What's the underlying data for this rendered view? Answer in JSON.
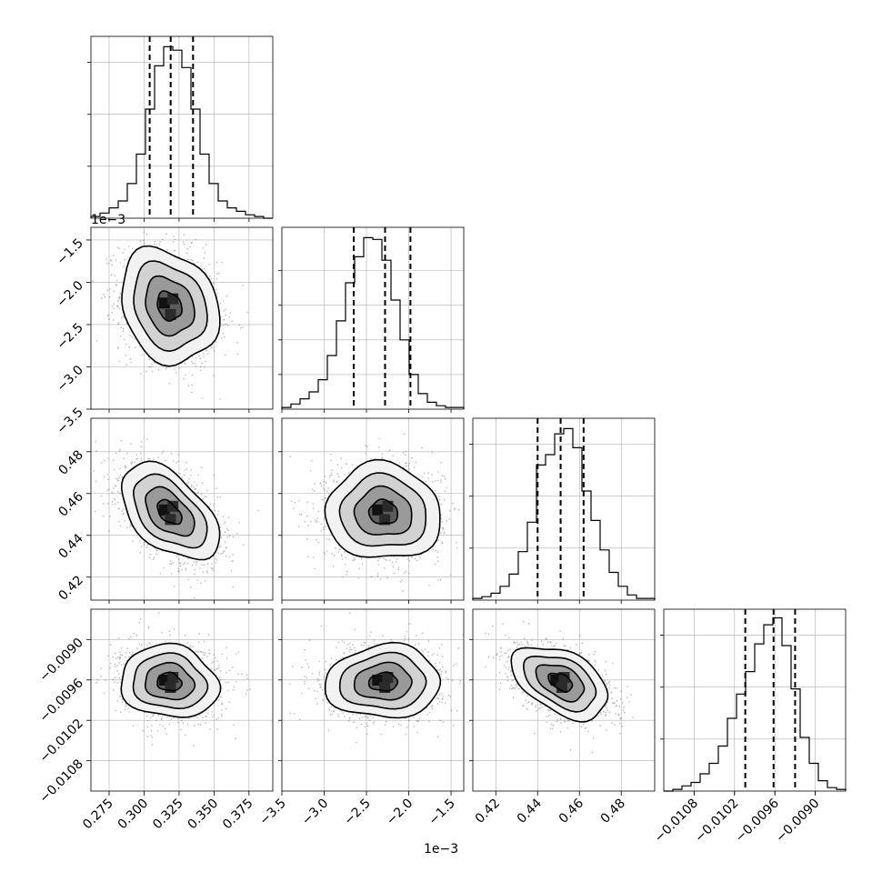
{
  "chart_data": {
    "type": "corner",
    "title": "",
    "parameters": [
      {
        "label": "",
        "range": [
          0.262,
          0.392
        ],
        "ticks": [
          0.275,
          0.3,
          0.325,
          0.35,
          0.375
        ],
        "tick_labels": [
          "0.275",
          "0.300",
          "0.325",
          "0.350",
          "0.375"
        ],
        "offset_label": ""
      },
      {
        "label": "",
        "range": [
          -3.5,
          -1.35
        ],
        "ticks": [
          -3.5,
          -3.0,
          -2.5,
          -2.0,
          -1.5
        ],
        "tick_labels": [
          "−3.5",
          "−3.0",
          "−2.5",
          "−2.0",
          "−1.5"
        ],
        "offset_label": "1e−3"
      },
      {
        "label": "",
        "range": [
          0.409,
          0.496
        ],
        "ticks": [
          0.42,
          0.44,
          0.46,
          0.48
        ],
        "tick_labels": [
          "0.42",
          "0.44",
          "0.46",
          "0.48"
        ],
        "offset_label": ""
      },
      {
        "label": "",
        "range": [
          -0.01125,
          -0.00855
        ],
        "ticks": [
          -0.0108,
          -0.0102,
          -0.0096,
          -0.009
        ],
        "tick_labels": [
          "−0.0108",
          "−0.0102",
          "−0.0096",
          "−0.0090"
        ],
        "offset_label": ""
      }
    ],
    "histograms": [
      {
        "edges_start": 0.262,
        "bin_width": 0.0065,
        "counts": [
          1,
          3,
          6,
          10,
          20,
          37,
          63,
          88,
          99,
          97,
          87,
          63,
          37,
          20,
          10,
          6,
          4,
          2,
          1,
          0
        ],
        "quantiles": [
          0.304,
          0.319,
          0.335
        ],
        "ymax": 105,
        "yticks": [
          30,
          60,
          90
        ]
      },
      {
        "edges_start": -3.5,
        "bin_width": 0.1075,
        "counts": [
          1,
          3,
          6,
          10,
          17,
          31,
          51,
          73,
          88,
          99,
          98,
          86,
          63,
          40,
          20,
          9,
          4,
          2,
          1,
          1
        ],
        "quantiles": [
          -2.65,
          -2.28,
          -1.98
        ],
        "ymax": 105,
        "yticks": [
          20,
          40,
          60,
          80
        ]
      },
      {
        "edges_start": 0.409,
        "bin_width": 0.00435,
        "counts": [
          1,
          2,
          4,
          8,
          15,
          28,
          45,
          78,
          84,
          96,
          99,
          88,
          63,
          46,
          29,
          16,
          8,
          3,
          1,
          1
        ],
        "quantiles": [
          0.44,
          0.451,
          0.462
        ],
        "ymax": 105,
        "yticks": [
          30,
          60,
          90
        ]
      },
      {
        "edges_start": -0.01125,
        "bin_width": 0.000135,
        "counts": [
          0,
          1,
          3,
          5,
          10,
          16,
          26,
          42,
          56,
          69,
          85,
          96,
          100,
          84,
          59,
          31,
          16,
          6,
          2,
          1
        ],
        "quantiles": [
          -0.01004,
          -0.00962,
          -0.0093
        ],
        "ymax": 105,
        "yticks": [
          30,
          60,
          90
        ]
      }
    ],
    "pairs": [
      {
        "x": 0,
        "y": 1,
        "center": [
          0.318,
          -2.28
        ],
        "sd": [
          0.0175,
          0.34
        ],
        "rho": -0.2
      },
      {
        "x": 0,
        "y": 2,
        "center": [
          0.318,
          0.451
        ],
        "sd": [
          0.0175,
          0.0115
        ],
        "rho": -0.5
      },
      {
        "x": 1,
        "y": 2,
        "center": [
          -2.3,
          0.451
        ],
        "sd": [
          0.34,
          0.0115
        ],
        "rho": -0.05
      },
      {
        "x": 0,
        "y": 3,
        "center": [
          0.318,
          -0.00963
        ],
        "sd": [
          0.0175,
          0.00027
        ],
        "rho": -0.1
      },
      {
        "x": 1,
        "y": 3,
        "center": [
          -2.3,
          -0.00963
        ],
        "sd": [
          0.34,
          0.00027
        ],
        "rho": 0.05
      },
      {
        "x": 2,
        "y": 3,
        "center": [
          0.451,
          -0.00963
        ],
        "sd": [
          0.0115,
          0.00027
        ],
        "rho": -0.45
      }
    ],
    "contour_levels_sigma": [
      0.5,
      1.0,
      1.5,
      2.0
    ],
    "grid": true,
    "legend": "none",
    "colors": {
      "contour": "#000000",
      "hist": "#000000",
      "points": "#000000",
      "grid": "#b0b0b0",
      "axis": "#000000"
    }
  }
}
